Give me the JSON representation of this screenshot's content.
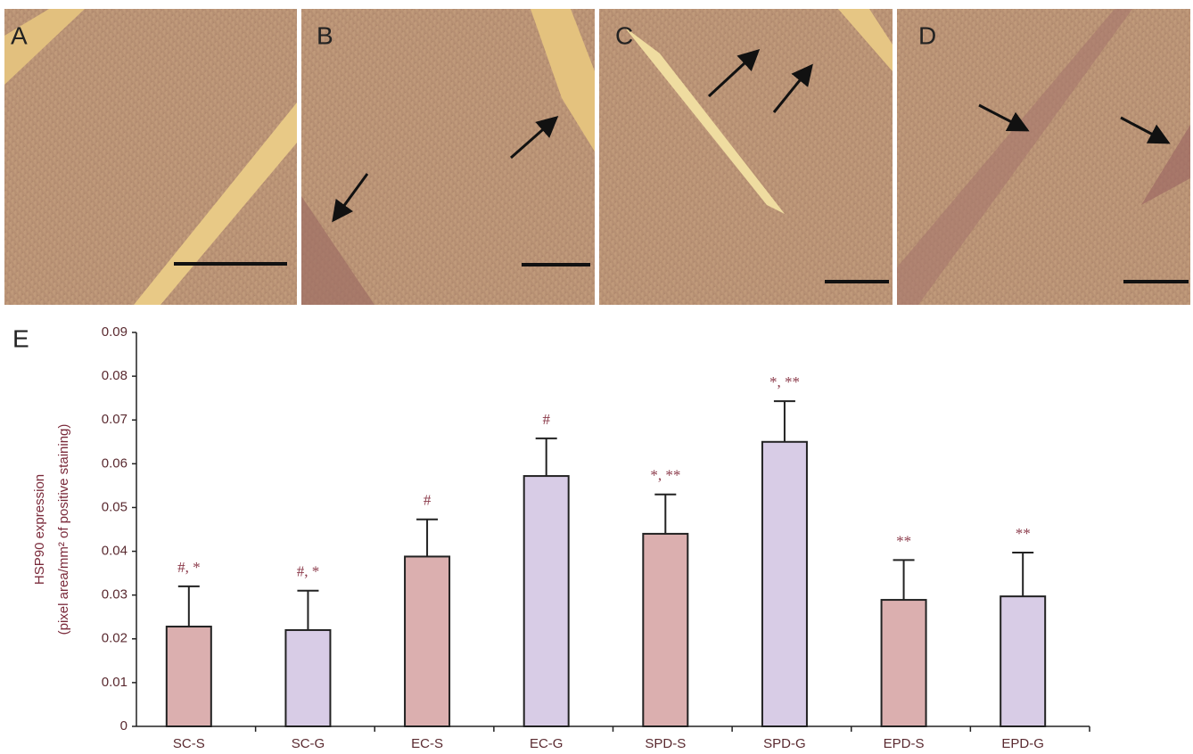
{
  "panels": [
    {
      "label": "A"
    },
    {
      "label": "B"
    },
    {
      "label": "C"
    },
    {
      "label": "D"
    }
  ],
  "chart_label": "E",
  "chart_data": {
    "type": "bar",
    "y_label": [
      "HSP90 expression",
      "(pixel area/mm² of positive staining)"
    ],
    "categories": [
      "SC-S",
      "SC-G",
      "EC-S",
      "EC-G",
      "SPD-S",
      "SPD-G",
      "EPD-S",
      "EPD-G"
    ],
    "values": [
      0.0228,
      0.022,
      0.0388,
      0.0572,
      0.044,
      0.065,
      0.0289,
      0.0297
    ],
    "errors": [
      0.0092,
      0.009,
      0.0085,
      0.0086,
      0.009,
      0.0093,
      0.0091,
      0.01
    ],
    "annotations": [
      "#, *",
      "#, *",
      "#",
      "#",
      "*, **",
      "*, **",
      "**",
      "**"
    ],
    "colors": [
      "#dbafaf",
      "#d8cce6",
      "#dbafaf",
      "#d8cce6",
      "#dbafaf",
      "#d8cce6",
      "#dbafaf",
      "#d8cce6"
    ],
    "ylim": [
      0,
      0.09
    ],
    "yticks": [
      0,
      0.01,
      0.02,
      0.03,
      0.04,
      0.05,
      0.06,
      0.07,
      0.08,
      0.09
    ],
    "grid": false
  }
}
